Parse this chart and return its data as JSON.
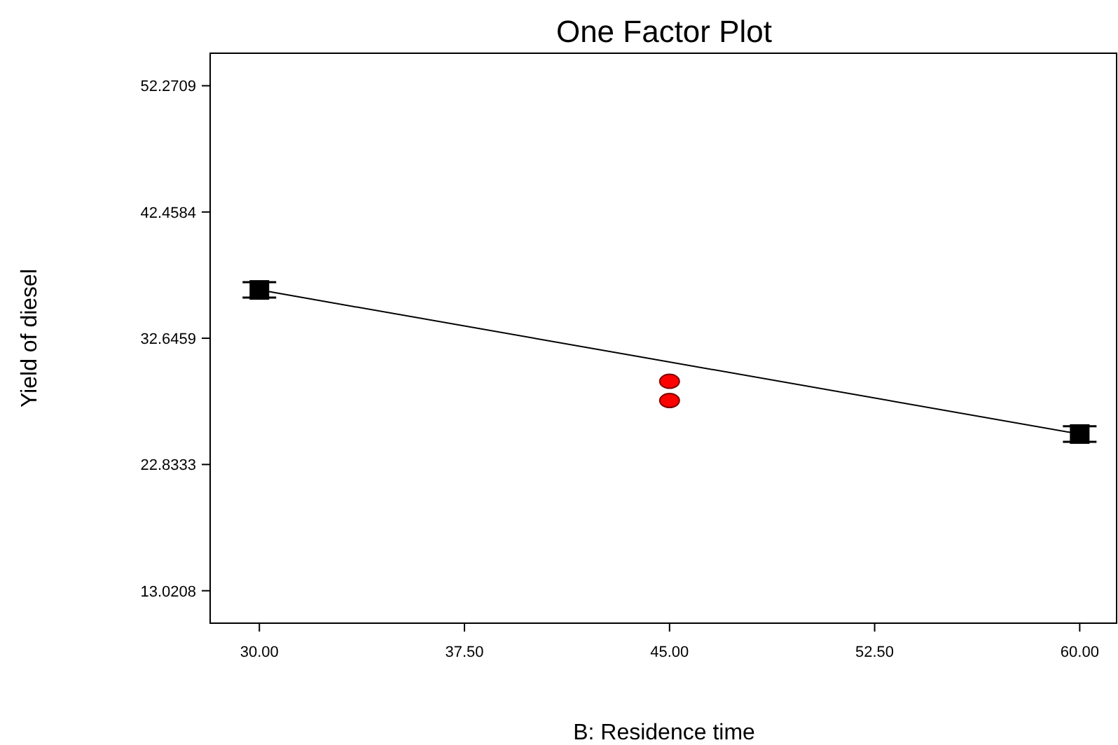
{
  "chart_data": {
    "type": "scatter",
    "title": "One Factor Plot",
    "xlabel": "B: Residence time",
    "ylabel": "Yield of diesel",
    "xlim": [
      28.2,
      61.4
    ],
    "ylim": [
      10.5,
      54.8
    ],
    "xticks": [
      {
        "value": 30,
        "label": "30.00"
      },
      {
        "value": 37.5,
        "label": "37.50"
      },
      {
        "value": 45,
        "label": "45.00"
      },
      {
        "value": 52.5,
        "label": "52.50"
      },
      {
        "value": 60,
        "label": "60.00"
      }
    ],
    "yticks": [
      13.0208,
      22.8333,
      32.6459,
      42.4584,
      52.2709
    ],
    "grid": false,
    "series": [
      {
        "type": "line",
        "color": "#000000",
        "marker": "none",
        "x": [
          30,
          60
        ],
        "values": [
          36.4,
          25.2
        ]
      },
      {
        "type": "scatter",
        "color": "#000000",
        "marker": "square",
        "x": [
          30,
          60
        ],
        "values": [
          36.4,
          25.2
        ],
        "errors": [
          0.6,
          0.6
        ]
      },
      {
        "type": "scatter",
        "color": "#ff0000",
        "marker": "circle",
        "x": [
          45,
          45
        ],
        "values": [
          29.3,
          27.8
        ]
      }
    ]
  }
}
